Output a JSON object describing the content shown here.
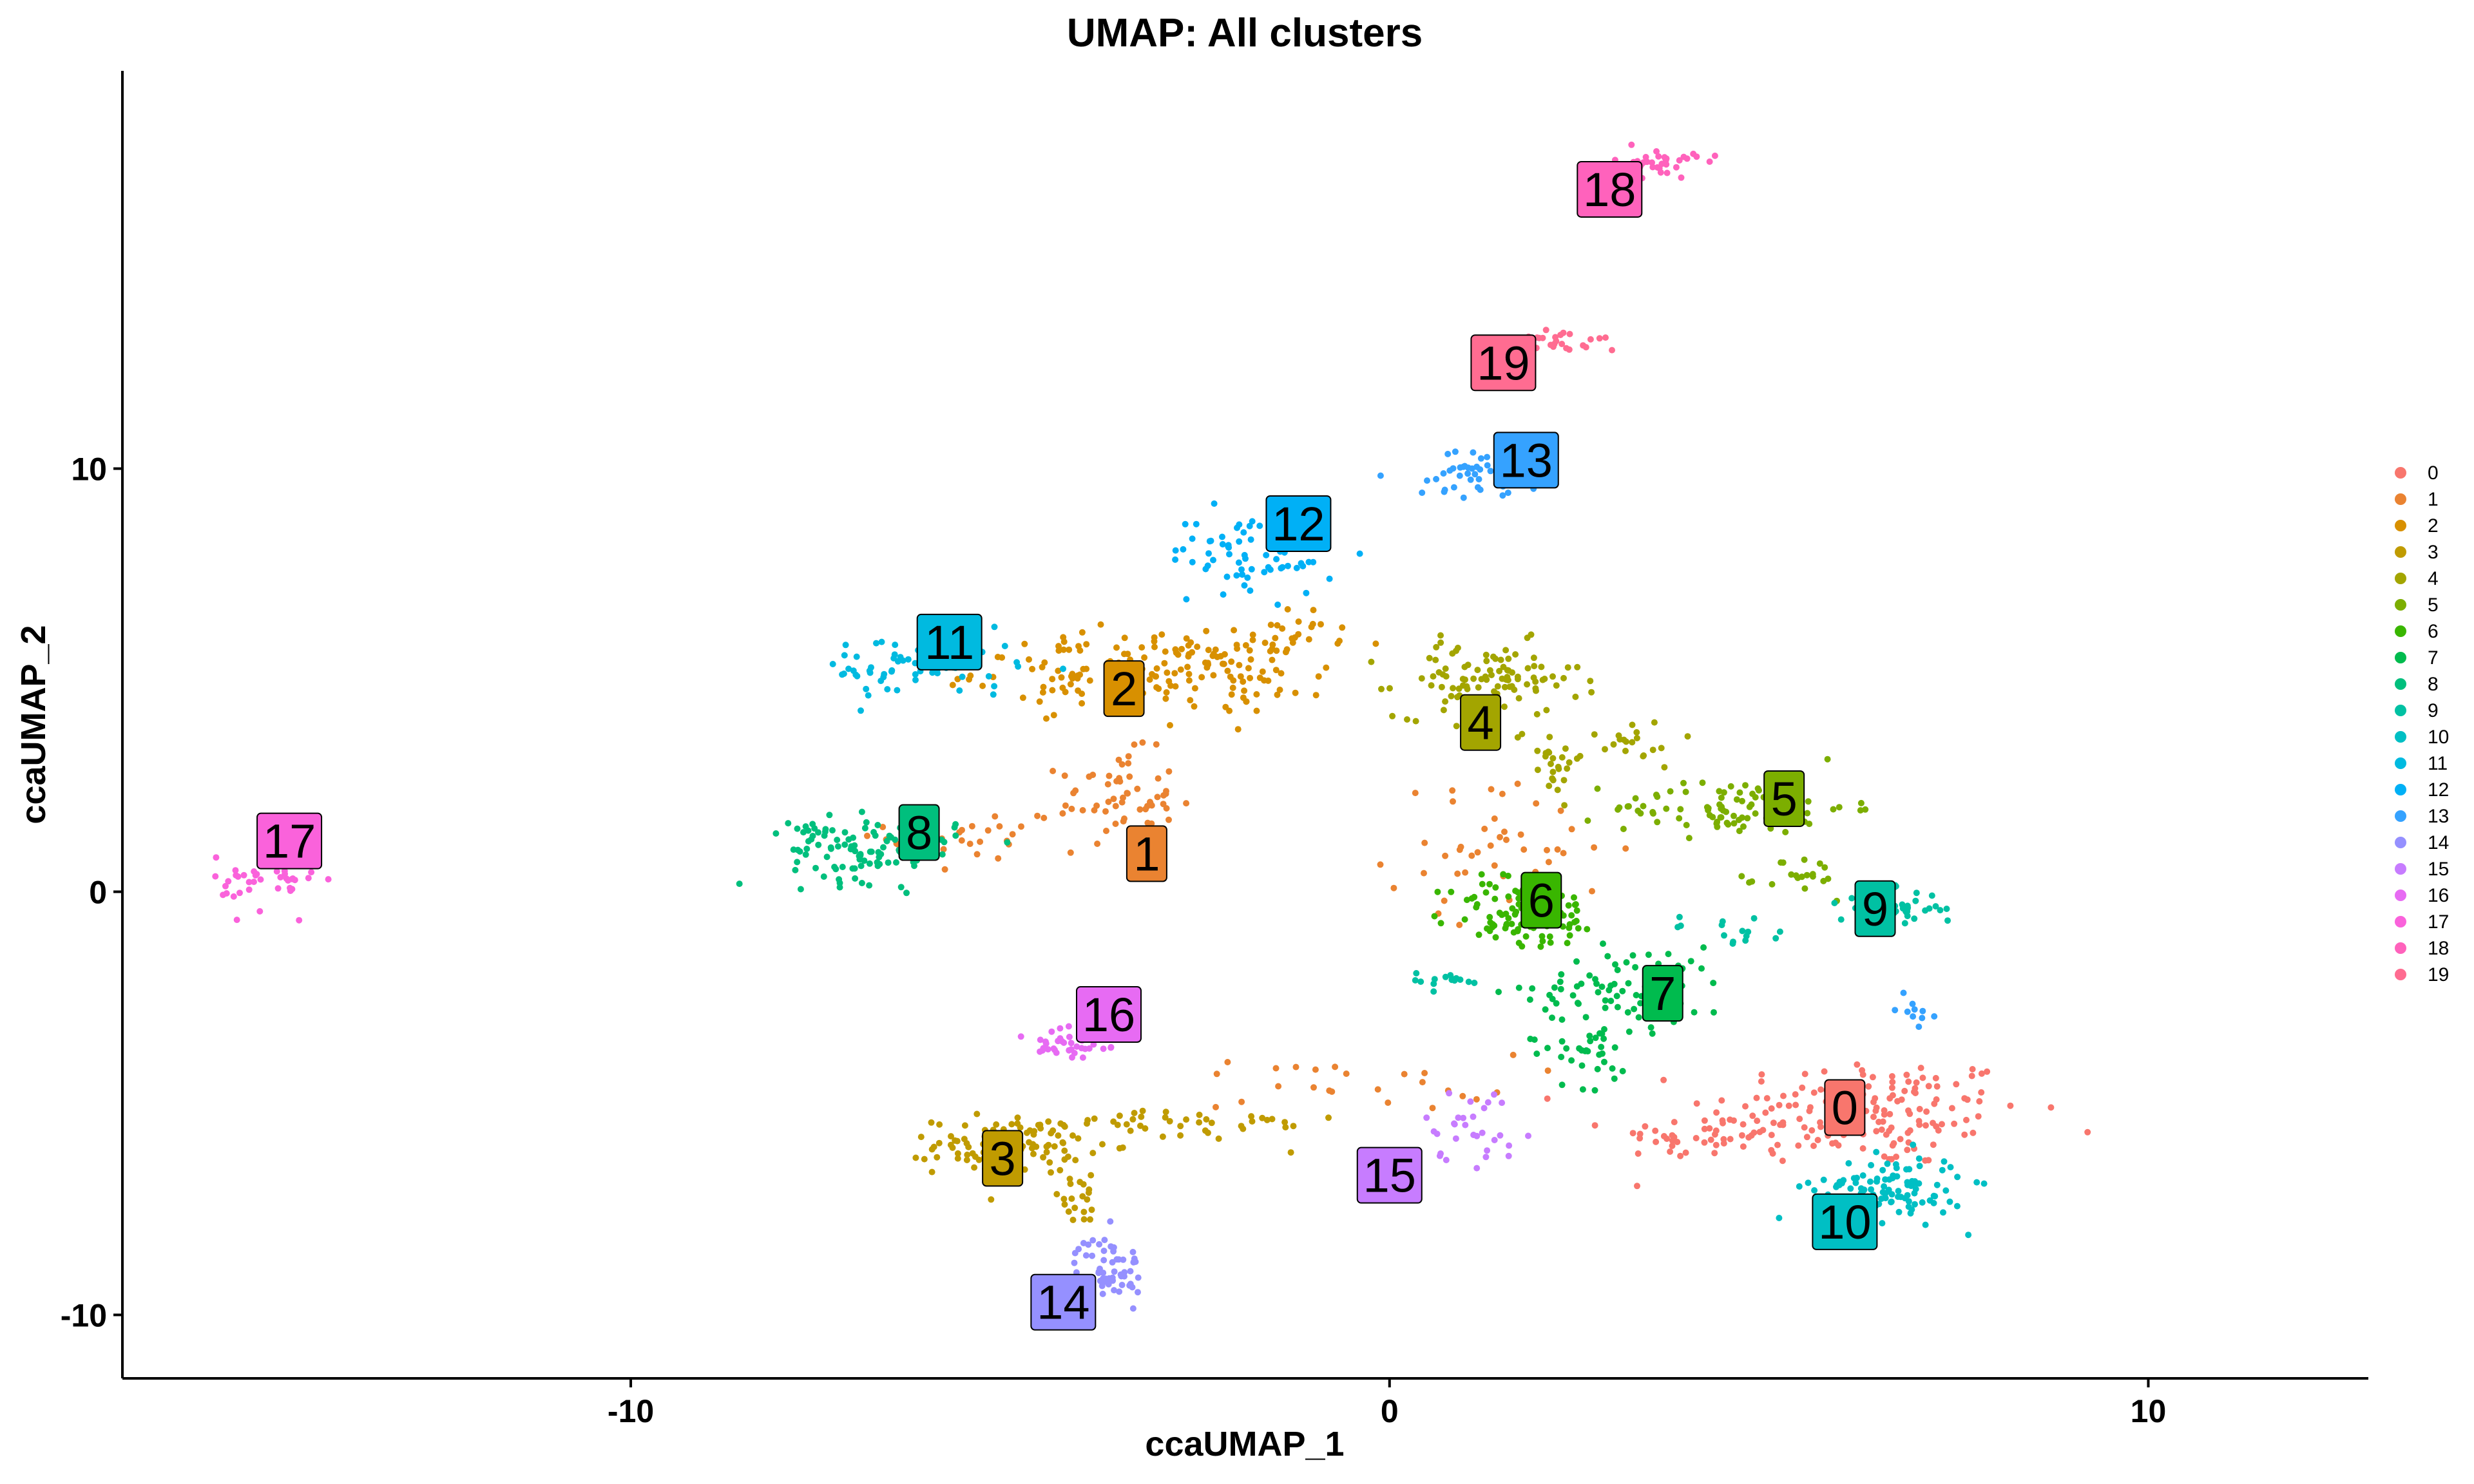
{
  "chart_data": {
    "type": "scatter",
    "title": "UMAP: All clusters",
    "xlabel": "ccaUMAP_1",
    "ylabel": "ccaUMAP_2",
    "xlim": [
      -16.7,
      12.9
    ],
    "ylim": [
      -11.5,
      19.4
    ],
    "xticks": [
      -10,
      0,
      10
    ],
    "xtick_labels": [
      "-10",
      "0",
      "10"
    ],
    "yticks": [
      -10,
      0,
      10
    ],
    "ytick_labels": [
      "-10",
      "0",
      "10"
    ],
    "grid": false,
    "legend_position": "right",
    "legend": [
      "0",
      "1",
      "2",
      "3",
      "4",
      "5",
      "6",
      "7",
      "8",
      "9",
      "10",
      "11",
      "12",
      "13",
      "14",
      "15",
      "16",
      "17",
      "18",
      "19"
    ],
    "colors": [
      "#F8766D",
      "#EA8331",
      "#D89000",
      "#C09B00",
      "#A3A500",
      "#7CAE00",
      "#39B600",
      "#00BB4E",
      "#00BF7D",
      "#00C1A3",
      "#00BFC4",
      "#00BAE0",
      "#00B0F6",
      "#35A2FF",
      "#9590FF",
      "#C77CFF",
      "#E76BF3",
      "#FA62DB",
      "#FF62BC",
      "#FF6C91"
    ],
    "clusters": [
      {
        "name": "0",
        "label": "0",
        "label_pos": [
          6.0,
          -5.1
        ],
        "segments": [
          {
            "center": [
              6.3,
              -5.2
            ],
            "spread": [
              1.9,
              1.2
            ],
            "n": 160
          },
          {
            "center": [
              4.2,
              -5.8
            ],
            "spread": [
              1.1,
              0.5
            ],
            "n": 45
          }
        ]
      },
      {
        "name": "1",
        "label": "1",
        "label_pos": [
          -3.2,
          0.9
        ],
        "segments": [
          {
            "center": [
              -3.6,
              2.2
            ],
            "spread": [
              0.7,
              1.0
            ],
            "n": 60
          },
          {
            "center": [
              -5.5,
              1.3
            ],
            "spread": [
              1.0,
              0.9
            ],
            "n": 30
          },
          {
            "center": [
              1.5,
              1.0
            ],
            "spread": [
              1.4,
              1.4
            ],
            "n": 45
          },
          {
            "center": [
              -0.5,
              -4.5
            ],
            "spread": [
              2.0,
              0.6
            ],
            "n": 25
          }
        ]
      },
      {
        "name": "2",
        "label": "2",
        "label_pos": [
          -3.5,
          4.8
        ],
        "segments": [
          {
            "center": [
              -3.7,
              5.2
            ],
            "spread": [
              1.6,
              0.8
            ],
            "n": 110
          },
          {
            "center": [
              -2.0,
              5.2
            ],
            "spread": [
              1.1,
              0.9
            ],
            "n": 70
          },
          {
            "center": [
              -1.2,
              6.1
            ],
            "spread": [
              0.5,
              0.5
            ],
            "n": 20
          }
        ]
      },
      {
        "name": "3",
        "label": "3",
        "label_pos": [
          -5.1,
          -6.3
        ],
        "segments": [
          {
            "center": [
              -5.0,
              -6.0
            ],
            "spread": [
              0.9,
              0.6
            ],
            "n": 110
          },
          {
            "center": [
              -2.8,
              -5.5
            ],
            "spread": [
              2.0,
              0.4
            ],
            "n": 40
          },
          {
            "center": [
              -4.1,
              -7.3
            ],
            "spread": [
              0.4,
              0.5
            ],
            "n": 20
          }
        ]
      },
      {
        "name": "4",
        "label": "4",
        "label_pos": [
          1.2,
          4.0
        ],
        "segments": [
          {
            "center": [
              1.3,
              5.0
            ],
            "spread": [
              1.1,
              0.8
            ],
            "n": 100
          },
          {
            "center": [
              2.1,
              3.2
            ],
            "spread": [
              0.4,
              0.8
            ],
            "n": 25
          },
          {
            "center": [
              3.2,
              3.5
            ],
            "spread": [
              0.6,
              0.5
            ],
            "n": 20
          }
        ]
      },
      {
        "name": "5",
        "label": "5",
        "label_pos": [
          5.2,
          2.2
        ],
        "segments": [
          {
            "center": [
              4.5,
              2.0
            ],
            "spread": [
              1.4,
              0.6
            ],
            "n": 90
          },
          {
            "center": [
              5.5,
              0.3
            ],
            "spread": [
              0.5,
              0.5
            ],
            "n": 20
          }
        ]
      },
      {
        "name": "6",
        "label": "6",
        "label_pos": [
          2.0,
          -0.2
        ],
        "segments": [
          {
            "center": [
              1.8,
              -0.5
            ],
            "spread": [
              0.9,
              0.8
            ],
            "n": 110
          }
        ]
      },
      {
        "name": "7",
        "label": "7",
        "label_pos": [
          3.6,
          -2.4
        ],
        "segments": [
          {
            "center": [
              3.2,
              -2.3
            ],
            "spread": [
              1.2,
              0.9
            ],
            "n": 90
          },
          {
            "center": [
              2.6,
              -3.8
            ],
            "spread": [
              0.7,
              0.7
            ],
            "n": 30
          }
        ]
      },
      {
        "name": "8",
        "label": "8",
        "label_pos": [
          -6.2,
          1.4
        ],
        "segments": [
          {
            "center": [
              -6.8,
              1.0
            ],
            "spread": [
              1.0,
              0.7
            ],
            "n": 100
          },
          {
            "center": [
              -7.6,
              1.4
            ],
            "spread": [
              0.3,
              0.2
            ],
            "n": 10
          }
        ]
      },
      {
        "name": "9",
        "label": "9",
        "label_pos": [
          6.4,
          -0.4
        ],
        "segments": [
          {
            "center": [
              6.6,
              -0.4
            ],
            "spread": [
              0.6,
              0.4
            ],
            "n": 55
          },
          {
            "center": [
              4.5,
              -0.9
            ],
            "spread": [
              1.0,
              0.3
            ],
            "n": 15
          },
          {
            "center": [
              0.7,
              -2.1
            ],
            "spread": [
              0.5,
              0.2
            ],
            "n": 15
          }
        ]
      },
      {
        "name": "10",
        "label": "10",
        "label_pos": [
          6.0,
          -7.8
        ],
        "segments": [
          {
            "center": [
              6.6,
              -7.0
            ],
            "spread": [
              0.9,
              0.7
            ],
            "n": 110
          }
        ]
      },
      {
        "name": "11",
        "label": "11",
        "label_pos": [
          -5.8,
          5.9
        ],
        "segments": [
          {
            "center": [
              -6.2,
              5.3
            ],
            "spread": [
              1.2,
              0.7
            ],
            "n": 70
          }
        ]
      },
      {
        "name": "12",
        "label": "12",
        "label_pos": [
          -1.2,
          8.7
        ],
        "segments": [
          {
            "center": [
              -1.8,
              8.0
            ],
            "spread": [
              1.0,
              0.9
            ],
            "n": 70
          }
        ]
      },
      {
        "name": "13",
        "label": "13",
        "label_pos": [
          1.8,
          10.2
        ],
        "segments": [
          {
            "center": [
              1.2,
              9.9
            ],
            "spread": [
              0.8,
              0.5
            ],
            "n": 55
          },
          {
            "center": [
              6.9,
              -2.8
            ],
            "spread": [
              0.2,
              0.3
            ],
            "n": 10
          }
        ]
      },
      {
        "name": "14",
        "label": "14",
        "label_pos": [
          -4.3,
          -9.7
        ],
        "segments": [
          {
            "center": [
              -3.7,
              -8.9
            ],
            "spread": [
              0.4,
              0.7
            ],
            "n": 60
          }
        ]
      },
      {
        "name": "15",
        "label": "15",
        "label_pos": [
          0.0,
          -6.7
        ],
        "segments": [
          {
            "center": [
              1.1,
              -5.5
            ],
            "spread": [
              0.6,
              0.8
            ],
            "n": 30
          }
        ]
      },
      {
        "name": "16",
        "label": "16",
        "label_pos": [
          -3.7,
          -2.9
        ],
        "segments": [
          {
            "center": [
              -4.2,
              -3.6
            ],
            "spread": [
              0.6,
              0.5
            ],
            "n": 40
          }
        ]
      },
      {
        "name": "17",
        "label": "17",
        "label_pos": [
          -14.5,
          1.2
        ],
        "segments": [
          {
            "center": [
              -14.8,
              0.2
            ],
            "spread": [
              0.6,
              0.6
            ],
            "n": 40
          }
        ]
      },
      {
        "name": "18",
        "label": "18",
        "label_pos": [
          2.9,
          16.6
        ],
        "segments": [
          {
            "center": [
              3.5,
              17.2
            ],
            "spread": [
              0.5,
              0.3
            ],
            "n": 40
          }
        ]
      },
      {
        "name": "19",
        "label": "19",
        "label_pos": [
          1.5,
          12.5
        ],
        "segments": [
          {
            "center": [
              2.3,
              13.0
            ],
            "spread": [
              0.7,
              0.3
            ],
            "n": 30
          }
        ]
      }
    ]
  }
}
